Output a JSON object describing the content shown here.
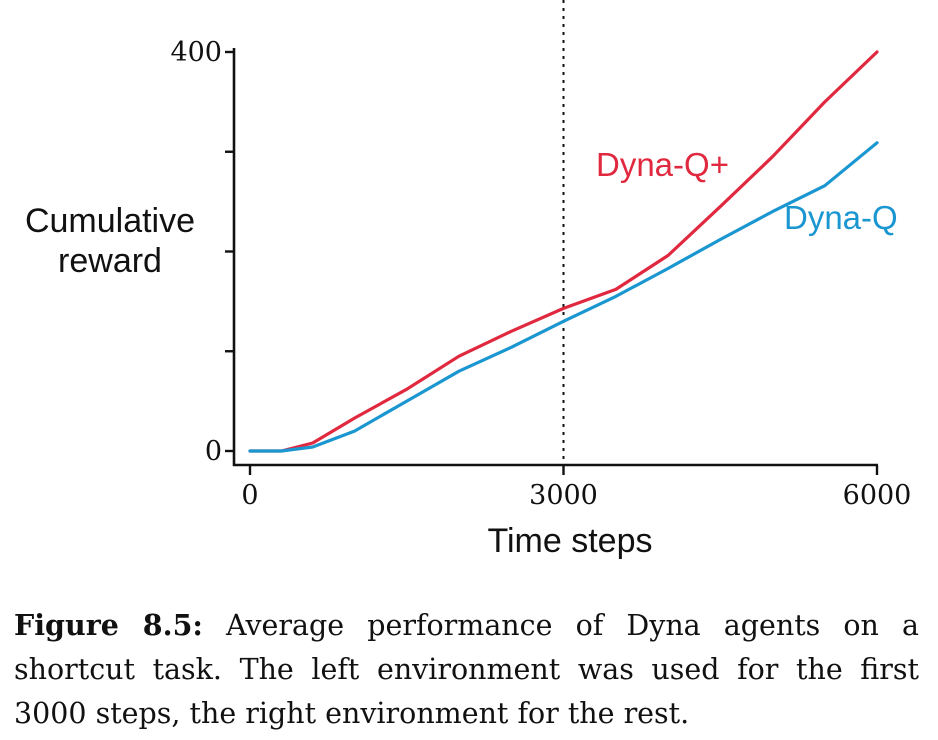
{
  "chart_data": {
    "type": "line",
    "xlabel": "Time steps",
    "ylabel_line1": "Cumulative",
    "ylabel_line2": "reward",
    "xlim": [
      0,
      6000
    ],
    "ylim": [
      0,
      400
    ],
    "x_ticks": [
      0,
      3000,
      6000
    ],
    "x_tick_labels": [
      "0",
      "3000",
      "6000"
    ],
    "y_ticks": [
      0,
      100,
      200,
      300,
      400
    ],
    "y_tick_labels": [
      "0",
      "",
      "",
      "",
      "400"
    ],
    "vline_x": 3000,
    "series": [
      {
        "name": "Dyna-Q+",
        "color": "#e0283f",
        "x": [
          0,
          300,
          600,
          1000,
          1500,
          2000,
          2500,
          3000,
          3500,
          4000,
          4500,
          5000,
          5500,
          6000
        ],
        "y": [
          0,
          0,
          8,
          33,
          62,
          95,
          120,
          143,
          162,
          196,
          245,
          295,
          350,
          400
        ]
      },
      {
        "name": "Dyna-Q",
        "color": "#1a96d0",
        "x": [
          0,
          300,
          600,
          1000,
          1500,
          2000,
          2500,
          3000,
          3500,
          4000,
          4500,
          5000,
          5500,
          6000
        ],
        "y": [
          0,
          0,
          4,
          20,
          50,
          80,
          104,
          130,
          155,
          183,
          212,
          240,
          266,
          309
        ]
      }
    ]
  },
  "caption": {
    "label": "Figure 8.5:",
    "text": "Average performance of Dyna agents on a shortcut task. The left environment was used for the first 3000 steps, the right environment for the rest."
  }
}
